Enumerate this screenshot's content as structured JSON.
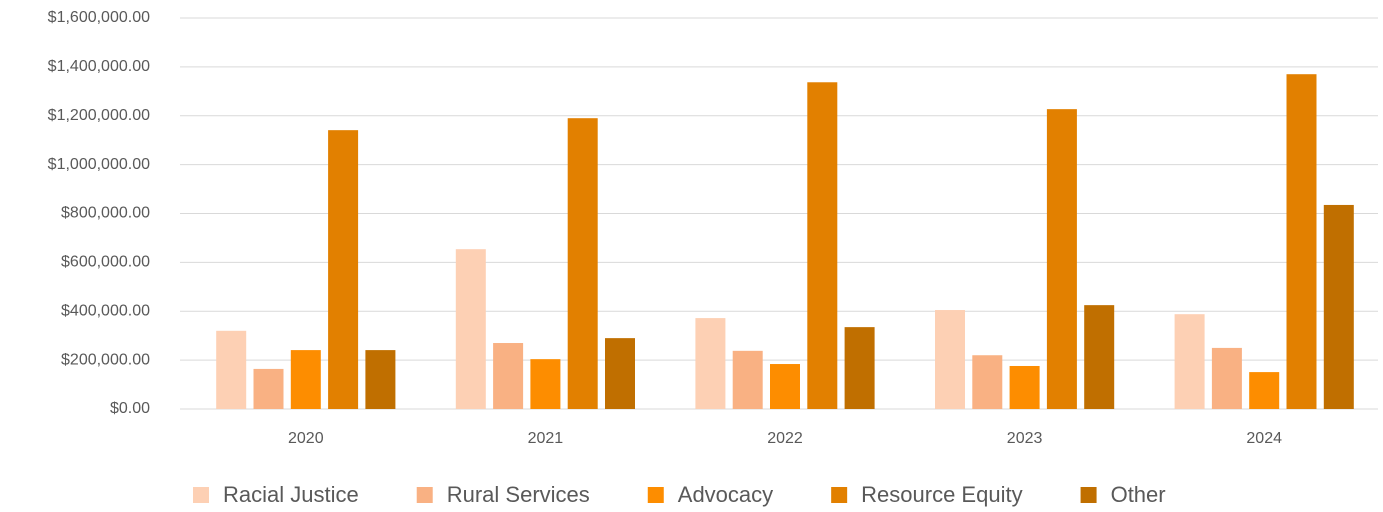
{
  "chart_data": {
    "type": "bar",
    "categories": [
      "2020",
      "2021",
      "2022",
      "2023",
      "2024"
    ],
    "series": [
      {
        "name": "Racial Justice",
        "color": "#fdd0b4",
        "values": [
          320000,
          654000,
          372000,
          405000,
          388000
        ]
      },
      {
        "name": "Rural Services",
        "color": "#f9b183",
        "values": [
          164000,
          270000,
          238000,
          220000,
          250000
        ]
      },
      {
        "name": "Advocacy",
        "color": "#fd8d00",
        "values": [
          241000,
          204000,
          184000,
          176000,
          151000
        ]
      },
      {
        "name": "Resource Equity",
        "color": "#e28000",
        "values": [
          1141000,
          1190000,
          1337000,
          1227000,
          1370000
        ]
      },
      {
        "name": "Other",
        "color": "#c06f00",
        "values": [
          241000,
          290000,
          335000,
          425000,
          835000
        ]
      }
    ],
    "ylim": [
      0,
      1600000
    ],
    "yticks": [
      {
        "value": 0,
        "label": "$0.00"
      },
      {
        "value": 200000,
        "label": "$200,000.00"
      },
      {
        "value": 400000,
        "label": "$400,000.00"
      },
      {
        "value": 600000,
        "label": "$600,000.00"
      },
      {
        "value": 800000,
        "label": "$800,000.00"
      },
      {
        "value": 1000000,
        "label": "$1,000,000.00"
      },
      {
        "value": 1200000,
        "label": "$1,200,000.00"
      },
      {
        "value": 1400000,
        "label": "$1,400,000.00"
      },
      {
        "value": 1600000,
        "label": "$1,600,000.00"
      }
    ],
    "grid": true,
    "legend": "bottom"
  }
}
